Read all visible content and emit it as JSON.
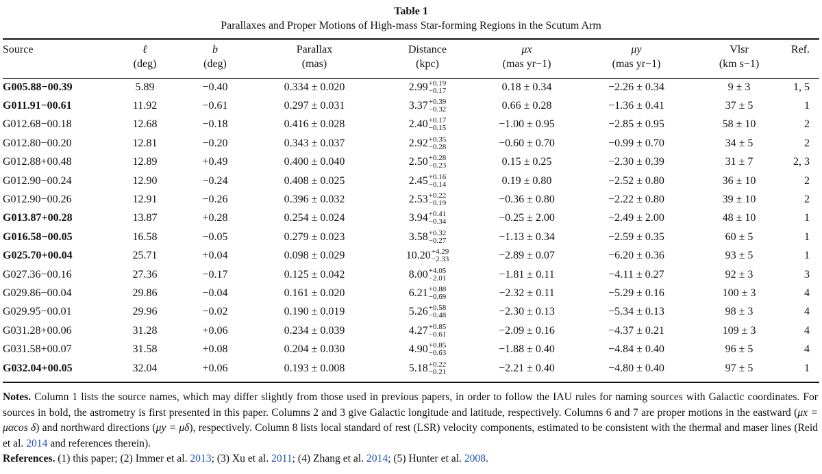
{
  "caption": {
    "label": "Table 1",
    "title": "Parallaxes and Proper Motions of High-mass Star-forming Regions in the Scutum Arm"
  },
  "columns": [
    {
      "name": "Source",
      "unit": ""
    },
    {
      "name": "ℓ",
      "unit": "(deg)"
    },
    {
      "name": "b",
      "unit": "(deg)"
    },
    {
      "name": "Parallax",
      "unit": "(mas)"
    },
    {
      "name": "Distance",
      "unit": "(kpc)"
    },
    {
      "name": "μx",
      "unit": "(mas yr−1)"
    },
    {
      "name": "μy",
      "unit": "(mas yr−1)"
    },
    {
      "name": "Vlsr",
      "unit": "(km s−1)"
    },
    {
      "name": "Ref.",
      "unit": ""
    }
  ],
  "rows": [
    {
      "source": "G005.88−00.39",
      "bold": true,
      "l": "5.89",
      "b": "−0.40",
      "parallax": "0.334 ± 0.020",
      "dist": "2.99",
      "dist_up": "+0.19",
      "dist_dn": "−0.17",
      "mux": "0.18 ± 0.34",
      "muy": "−2.26 ± 0.34",
      "vlsr": "9 ± 3",
      "ref": "1, 5"
    },
    {
      "source": "G011.91−00.61",
      "bold": true,
      "l": "11.92",
      "b": "−0.61",
      "parallax": "0.297 ± 0.031",
      "dist": "3.37",
      "dist_up": "+0.39",
      "dist_dn": "−0.32",
      "mux": "0.66 ± 0.28",
      "muy": "−1.36 ± 0.41",
      "vlsr": "37 ± 5",
      "ref": "1"
    },
    {
      "source": "G012.68−00.18",
      "bold": false,
      "l": "12.68",
      "b": "−0.18",
      "parallax": "0.416 ± 0.028",
      "dist": "2.40",
      "dist_up": "+0.17",
      "dist_dn": "−0.15",
      "mux": "−1.00 ± 0.95",
      "muy": "−2.85 ± 0.95",
      "vlsr": "58 ± 10",
      "ref": "2"
    },
    {
      "source": "G012.80−00.20",
      "bold": false,
      "l": "12.81",
      "b": "−0.20",
      "parallax": "0.343 ± 0.037",
      "dist": "2.92",
      "dist_up": "+0.35",
      "dist_dn": "−0.28",
      "mux": "−0.60 ± 0.70",
      "muy": "−0.99 ± 0.70",
      "vlsr": "34 ± 5",
      "ref": "2"
    },
    {
      "source": "G012.88+00.48",
      "bold": false,
      "l": "12.89",
      "b": "+0.49",
      "parallax": "0.400 ± 0.040",
      "dist": "2.50",
      "dist_up": "+0.28",
      "dist_dn": "−0.23",
      "mux": "0.15 ± 0.25",
      "muy": "−2.30 ± 0.39",
      "vlsr": "31 ± 7",
      "ref": "2, 3"
    },
    {
      "source": "G012.90−00.24",
      "bold": false,
      "l": "12.90",
      "b": "−0.24",
      "parallax": "0.408 ± 0.025",
      "dist": "2.45",
      "dist_up": "+0.16",
      "dist_dn": "−0.14",
      "mux": "0.19 ± 0.80",
      "muy": "−2.52 ± 0.80",
      "vlsr": "36 ± 10",
      "ref": "2"
    },
    {
      "source": "G012.90−00.26",
      "bold": false,
      "l": "12.91",
      "b": "−0.26",
      "parallax": "0.396 ± 0.032",
      "dist": "2.53",
      "dist_up": "+0.22",
      "dist_dn": "−0.19",
      "mux": "−0.36 ± 0.80",
      "muy": "−2.22 ± 0.80",
      "vlsr": "39 ± 10",
      "ref": "2"
    },
    {
      "source": "G013.87+00.28",
      "bold": true,
      "l": "13.87",
      "b": "+0.28",
      "parallax": "0.254 ± 0.024",
      "dist": "3.94",
      "dist_up": "+0.41",
      "dist_dn": "−0.34",
      "mux": "−0.25 ± 2.00",
      "muy": "−2.49 ± 2.00",
      "vlsr": "48 ± 10",
      "ref": "1"
    },
    {
      "source": "G016.58−00.05",
      "bold": true,
      "l": "16.58",
      "b": "−0.05",
      "parallax": "0.279 ± 0.023",
      "dist": "3.58",
      "dist_up": "+0.32",
      "dist_dn": "−0.27",
      "mux": "−1.13 ± 0.34",
      "muy": "−2.59 ± 0.35",
      "vlsr": "60 ± 5",
      "ref": "1"
    },
    {
      "source": "G025.70+00.04",
      "bold": true,
      "l": "25.71",
      "b": "+0.04",
      "parallax": "0.098 ± 0.029",
      "dist": "10.20",
      "dist_up": "+4.29",
      "dist_dn": "−2.33",
      "mux": "−2.89 ± 0.07",
      "muy": "−6.20 ± 0.36",
      "vlsr": "93 ± 5",
      "ref": "1"
    },
    {
      "source": "G027.36−00.16",
      "bold": false,
      "l": "27.36",
      "b": "−0.17",
      "parallax": "0.125 ± 0.042",
      "dist": "8.00",
      "dist_up": "+4.05",
      "dist_dn": "−2.01",
      "mux": "−1.81 ± 0.11",
      "muy": "−4.11 ± 0.27",
      "vlsr": "92 ± 3",
      "ref": "3"
    },
    {
      "source": "G029.86−00.04",
      "bold": false,
      "l": "29.86",
      "b": "−0.04",
      "parallax": "0.161 ± 0.020",
      "dist": "6.21",
      "dist_up": "+0.88",
      "dist_dn": "−0.69",
      "mux": "−2.32 ± 0.11",
      "muy": "−5.29 ± 0.16",
      "vlsr": "100 ± 3",
      "ref": "4"
    },
    {
      "source": "G029.95−00.01",
      "bold": false,
      "l": "29.96",
      "b": "−0.02",
      "parallax": "0.190 ± 0.019",
      "dist": "5.26",
      "dist_up": "+0.58",
      "dist_dn": "−0.48",
      "mux": "−2.30 ± 0.13",
      "muy": "−5.34 ± 0.13",
      "vlsr": "98 ± 3",
      "ref": "4"
    },
    {
      "source": "G031.28+00.06",
      "bold": false,
      "l": "31.28",
      "b": "+0.06",
      "parallax": "0.234 ± 0.039",
      "dist": "4.27",
      "dist_up": "+0.85",
      "dist_dn": "−0.61",
      "mux": "−2.09 ± 0.16",
      "muy": "−4.37 ± 0.21",
      "vlsr": "109 ± 3",
      "ref": "4"
    },
    {
      "source": "G031.58+00.07",
      "bold": false,
      "l": "31.58",
      "b": "+0.08",
      "parallax": "0.204 ± 0.030",
      "dist": "4.90",
      "dist_up": "+0.85",
      "dist_dn": "−0.63",
      "mux": "−1.88 ± 0.40",
      "muy": "−4.84 ± 0.40",
      "vlsr": "96 ± 5",
      "ref": "4"
    },
    {
      "source": "G032.04+00.05",
      "bold": true,
      "l": "32.04",
      "b": "+0.06",
      "parallax": "0.193 ± 0.008",
      "dist": "5.18",
      "dist_up": "+0.22",
      "dist_dn": "−0.21",
      "mux": "−2.21 ± 0.40",
      "muy": "−4.80 ± 0.40",
      "vlsr": "97 ± 5",
      "ref": "1"
    }
  ],
  "notes": {
    "label": "Notes.",
    "p1": " Column 1 lists the source names, which may differ slightly from those used in previous papers, in order to follow the IAU rules for naming sources with Galactic coordinates. For sources in bold, the astrometry is first presented in this paper. Columns 2 and 3 give Galactic longitude and latitude, respectively. Columns 6 and 7 are proper motions in the eastward (",
    "eq1": "μx = μαcos δ",
    "p2": ") and northward directions (",
    "eq2": "μy = μδ",
    "p3": "), respectively. Column 8 lists local standard of rest (LSR) velocity components, estimated to be consistent with the thermal and maser lines (Reid et al. ",
    "cite_year": "2014",
    "p4": " and references therein).",
    "ref_label": "References.",
    "refs": [
      {
        "text": " (1) this paper; (2) Immer et al. ",
        "year": "2013"
      },
      {
        "text": "; (3) Xu et al. ",
        "year": "2011"
      },
      {
        "text": "; (4) Zhang et al. ",
        "year": "2014"
      },
      {
        "text": "; (5) Hunter et al. ",
        "year": "2008"
      }
    ],
    "end": "."
  }
}
